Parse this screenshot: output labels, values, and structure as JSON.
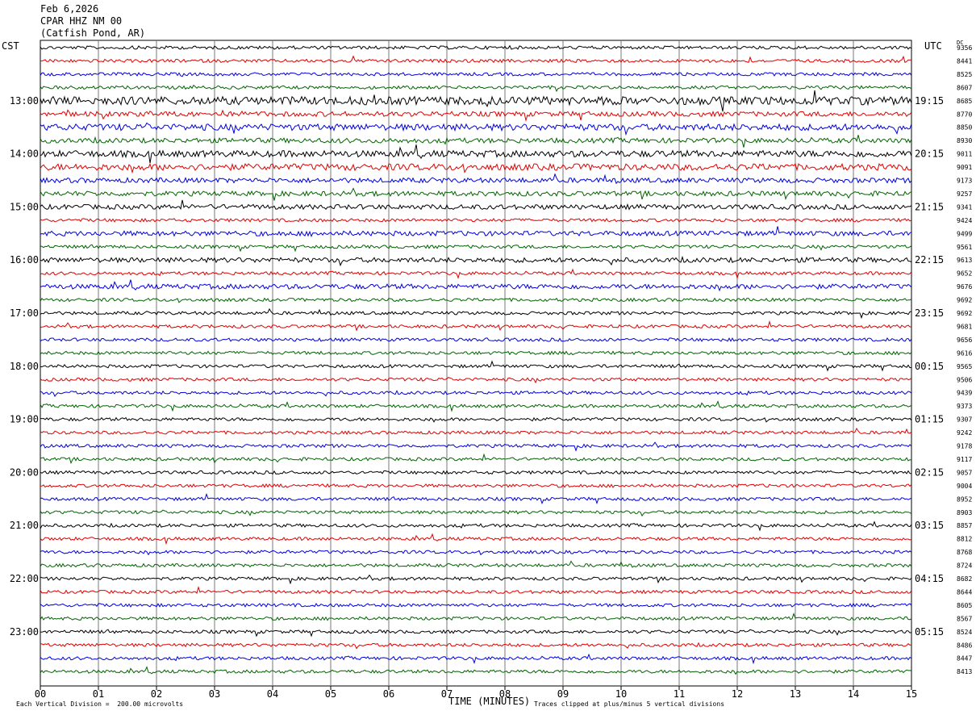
{
  "header": {
    "date": "Feb 6,2026",
    "station": "CPAR HHZ NM 00",
    "location": "(Catfish Pond, AR)"
  },
  "left_timezone": "CST",
  "right_timezone": "UTC",
  "dc_label": "DC",
  "footer": {
    "scale_note": "Each Vertical Division =  200.00 microvolts",
    "clip_note": "Traces clipped at plus/minus 5 vertical divisions",
    "x_title": "TIME (MINUTES)"
  },
  "colors": {
    "trace_cycle": [
      "#000000",
      "#e00000",
      "#0000e0",
      "#006400"
    ],
    "grid": "#777777"
  },
  "chart_data": {
    "type": "line",
    "title": "",
    "xlabel": "TIME (MINUTES)",
    "xlim": [
      0,
      15
    ],
    "x_ticks": [
      "00",
      "01",
      "02",
      "03",
      "04",
      "05",
      "06",
      "07",
      "08",
      "09",
      "10",
      "11",
      "12",
      "13",
      "14",
      "15"
    ],
    "rows_per_hour": 4,
    "left_labels": [
      "13:00",
      "14:00",
      "15:00",
      "16:00",
      "17:00",
      "18:00",
      "19:00",
      "20:00",
      "21:00",
      "22:00",
      "23:00"
    ],
    "right_labels": [
      "19:15",
      "20:15",
      "21:15",
      "22:15",
      "23:15",
      "00:15",
      "01:15",
      "02:15",
      "03:15",
      "04:15",
      "05:15"
    ],
    "dc_offsets": [
      9356,
      8441,
      8525,
      8607,
      8685,
      8770,
      8850,
      8930,
      9011,
      9091,
      9173,
      9257,
      9341,
      9424,
      9499,
      9561,
      9613,
      9652,
      9676,
      9692,
      9692,
      9681,
      9656,
      9616,
      9565,
      9506,
      9439,
      9373,
      9307,
      9242,
      9178,
      9117,
      9057,
      9004,
      8952,
      8903,
      8857,
      8812,
      8768,
      8724,
      8682,
      8644,
      8605,
      8567,
      8524,
      8486,
      8447,
      8413
    ],
    "noise_level": [
      2,
      2,
      2,
      2,
      5,
      3,
      4,
      3,
      4,
      4,
      3,
      3,
      3,
      2,
      3,
      2,
      3,
      2,
      3,
      2,
      2,
      2,
      2,
      2,
      2,
      2,
      2,
      2,
      2,
      2,
      2,
      2,
      2,
      2,
      2,
      2,
      2,
      2,
      2,
      2,
      2,
      2,
      2,
      2,
      2,
      2,
      2,
      2
    ]
  }
}
